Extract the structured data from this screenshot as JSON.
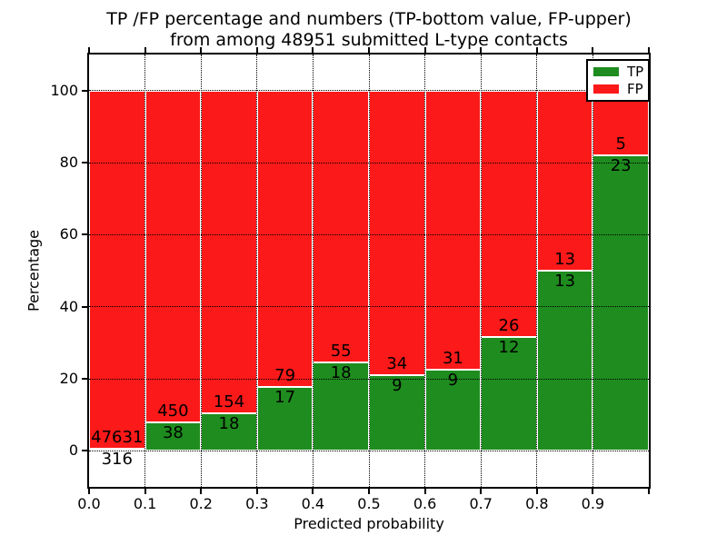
{
  "chart_data": {
    "type": "bar",
    "stacked": true,
    "title": "TP /FP percentage and numbers (TP-bottom value, FP-upper)\nfrom among 48951 submitted L-type contacts",
    "xlabel": "Predicted probability",
    "ylabel": "Percentage",
    "xlim": [
      0.0,
      1.0
    ],
    "ylim": [
      -10,
      110
    ],
    "grid": true,
    "y_ticks": [
      0,
      20,
      40,
      60,
      80,
      100
    ],
    "x_tick_labels": [
      "0.0",
      "0.1",
      "0.2",
      "0.3",
      "0.4",
      "0.5",
      "0.6",
      "0.7",
      "0.8",
      "0.9"
    ],
    "legend": {
      "position": "upper right",
      "entries": [
        {
          "label": "TP",
          "color": "#1e8c1e"
        },
        {
          "label": "FP",
          "color": "#fc1919"
        }
      ]
    },
    "bins": [
      {
        "range": "0.0-0.1",
        "tp": 316,
        "fp": 47631,
        "tp_pct": 0.66,
        "fp_pct": 99.34
      },
      {
        "range": "0.1-0.2",
        "tp": 38,
        "fp": 450,
        "tp_pct": 7.79,
        "fp_pct": 92.21
      },
      {
        "range": "0.2-0.3",
        "tp": 18,
        "fp": 154,
        "tp_pct": 10.47,
        "fp_pct": 89.53
      },
      {
        "range": "0.3-0.4",
        "tp": 17,
        "fp": 79,
        "tp_pct": 17.71,
        "fp_pct": 82.29
      },
      {
        "range": "0.4-0.5",
        "tp": 18,
        "fp": 55,
        "tp_pct": 24.66,
        "fp_pct": 75.34
      },
      {
        "range": "0.5-0.6",
        "tp": 9,
        "fp": 34,
        "tp_pct": 20.93,
        "fp_pct": 79.07
      },
      {
        "range": "0.6-0.7",
        "tp": 9,
        "fp": 31,
        "tp_pct": 22.5,
        "fp_pct": 77.5
      },
      {
        "range": "0.7-0.8",
        "tp": 12,
        "fp": 26,
        "tp_pct": 31.58,
        "fp_pct": 68.42
      },
      {
        "range": "0.8-0.9",
        "tp": 13,
        "fp": 13,
        "tp_pct": 50.0,
        "fp_pct": 50.0
      },
      {
        "range": "0.9-1.0",
        "tp": 23,
        "fp": 5,
        "tp_pct": 82.14,
        "fp_pct": 17.86
      }
    ]
  },
  "colors": {
    "tp": "#1e8c1e",
    "fp": "#fc1919",
    "bar_edge": "#ffffff",
    "grid": "#000000",
    "text": "#000000",
    "background": "#ffffff"
  }
}
